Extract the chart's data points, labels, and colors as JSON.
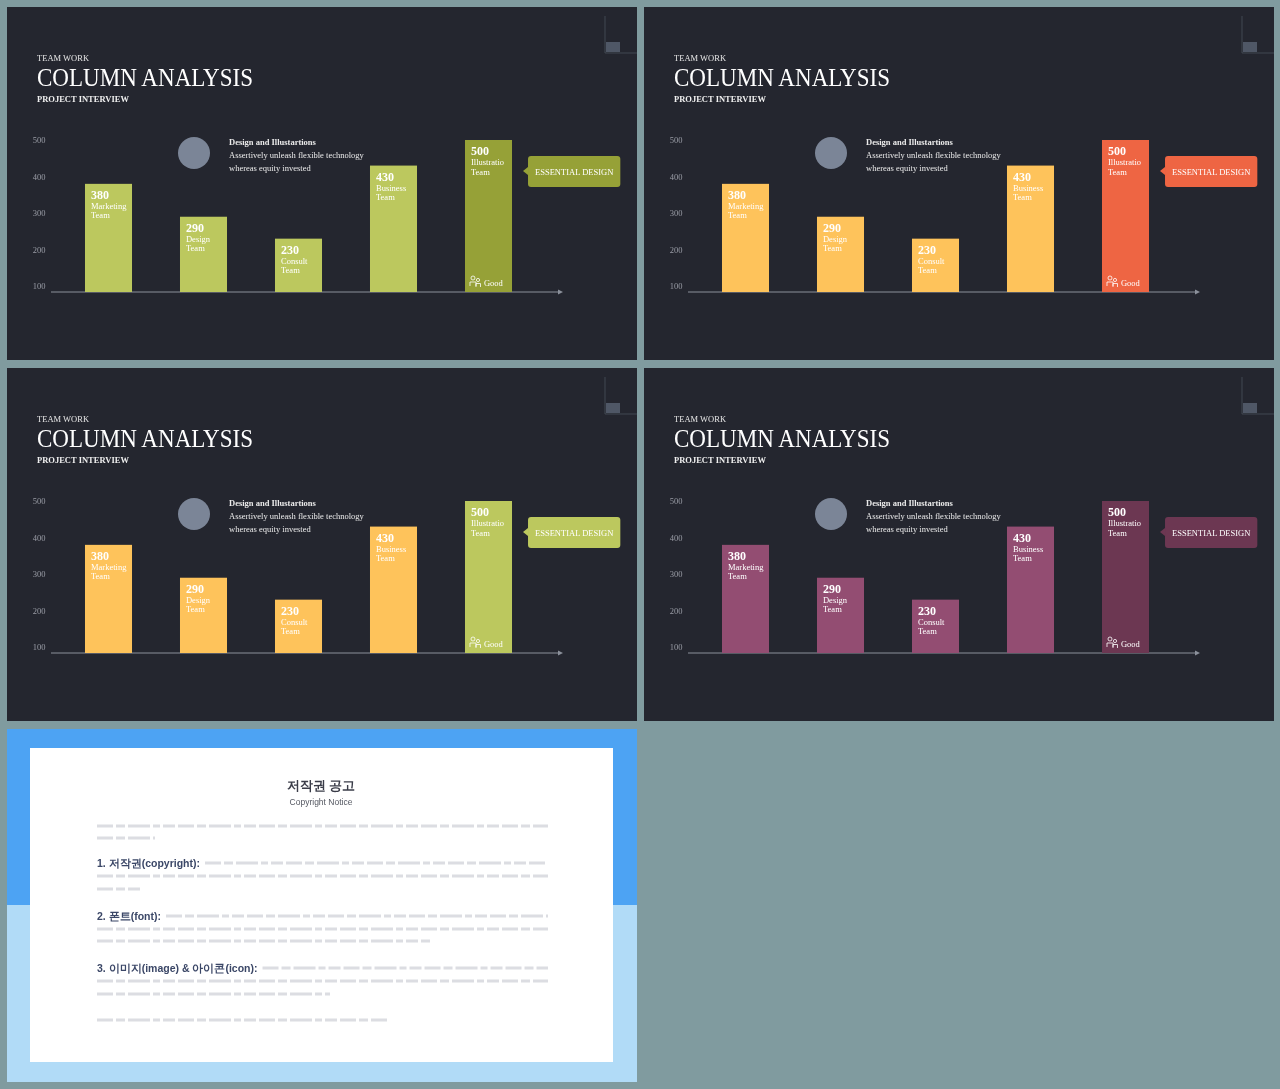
{
  "chart_data": [
    {
      "type": "bar",
      "title": "COLUMN ANALYSIS",
      "subtitle": "PROJECT INTERVIEW",
      "categories": [
        "Marketing Team",
        "Design Team",
        "Consult Team",
        "Business Team",
        "Illustratio Team"
      ],
      "values": [
        380,
        290,
        230,
        430,
        500
      ],
      "colors": [
        "#bcc85e",
        "#bcc85e",
        "#bcc85e",
        "#bcc85e",
        "#96a137"
      ],
      "data_labels": true,
      "ylim": [
        84,
        500
      ],
      "yticks": [
        100,
        200,
        300,
        400,
        500
      ],
      "annotations": [
        "TEAM WORK",
        "Design and Illustartions",
        "Assertively unleash flexible technology",
        "whereas equity invested",
        "ESSENTIAL DESIGN",
        "Good"
      ]
    },
    {
      "type": "bar",
      "title": "COLUMN ANALYSIS",
      "subtitle": "PROJECT INTERVIEW",
      "categories": [
        "Marketing Team",
        "Design Team",
        "Consult Team",
        "Business Team",
        "Illustratio Team"
      ],
      "values": [
        380,
        290,
        230,
        430,
        500
      ],
      "colors": [
        "#fec35b",
        "#fec35b",
        "#fec35b",
        "#fec35b",
        "#ee6543"
      ],
      "data_labels": true,
      "ylim": [
        84,
        500
      ],
      "yticks": [
        100,
        200,
        300,
        400,
        500
      ],
      "annotations": [
        "TEAM WORK",
        "Design and Illustartions",
        "Assertively unleash flexible technology",
        "whereas equity invested",
        "ESSENTIAL DESIGN",
        "Good"
      ]
    },
    {
      "type": "bar",
      "title": "COLUMN ANALYSIS",
      "subtitle": "PROJECT INTERVIEW",
      "categories": [
        "Marketing Team",
        "Design Team",
        "Consult Team",
        "Business Team",
        "Illustratio Team"
      ],
      "values": [
        380,
        290,
        230,
        430,
        500
      ],
      "colors": [
        "#fec35b",
        "#fec35b",
        "#fec35b",
        "#fec35b",
        "#bcc85e"
      ],
      "data_labels": true,
      "ylim": [
        84,
        500
      ],
      "yticks": [
        100,
        200,
        300,
        400,
        500
      ],
      "annotations": [
        "TEAM WORK",
        "Design and Illustartions",
        "Assertively unleash flexible technology",
        "whereas equity invested",
        "ESSENTIAL DESIGN",
        "Good"
      ]
    },
    {
      "type": "bar",
      "title": "COLUMN ANALYSIS",
      "subtitle": "PROJECT INTERVIEW",
      "categories": [
        "Marketing Team",
        "Design Team",
        "Consult Team",
        "Business Team",
        "Illustratio Team"
      ],
      "values": [
        380,
        290,
        230,
        430,
        500
      ],
      "colors": [
        "#934d72",
        "#934d72",
        "#934d72",
        "#934d72",
        "#6c3752"
      ],
      "data_labels": true,
      "ylim": [
        84,
        500
      ],
      "yticks": [
        100,
        200,
        300,
        400,
        500
      ],
      "annotations": [
        "TEAM WORK",
        "Design and Illustartions",
        "Assertively unleash flexible technology",
        "whereas equity invested",
        "ESSENTIAL DESIGN",
        "Good"
      ]
    },
    {
      "type": "other",
      "title": "저작권 공고",
      "subtitle": "Copyright Notice",
      "annotations": [
        "1. 저작권(copyright):",
        "2. 폰트(font):",
        "3. 이미지(image) & 아이콘(icon):"
      ]
    }
  ]
}
